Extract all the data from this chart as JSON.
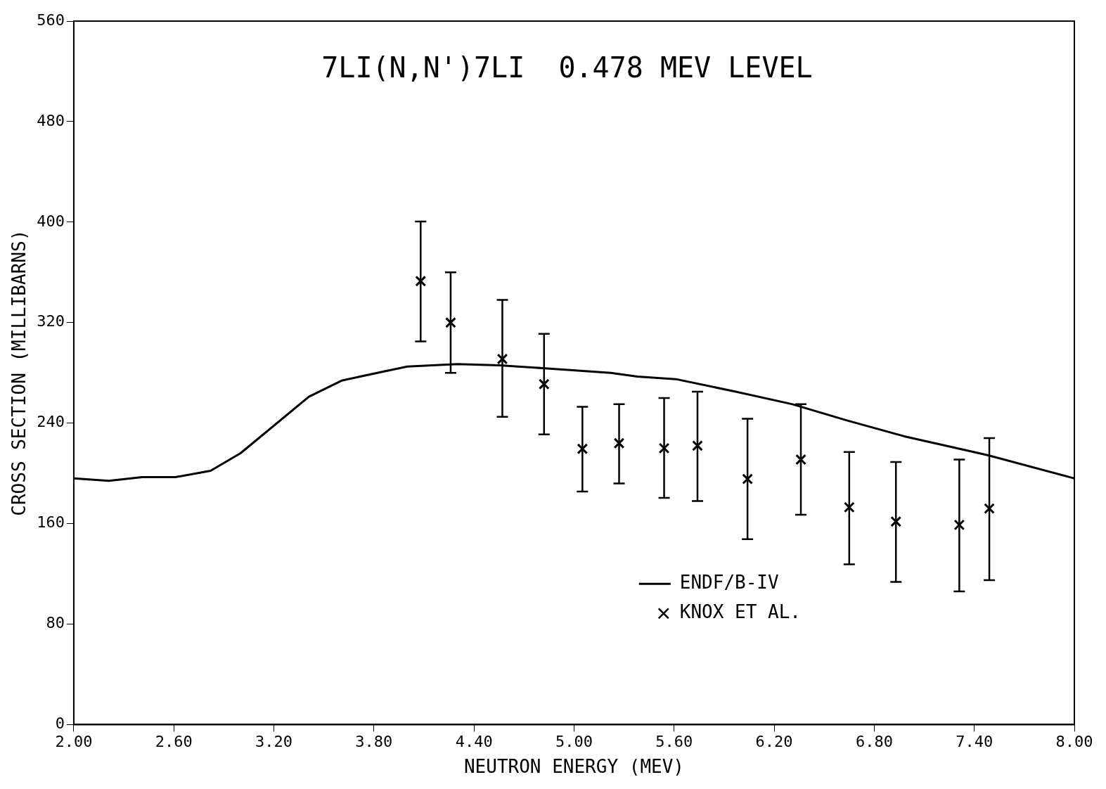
{
  "chart_data": {
    "type": "line",
    "title": "7LI(N,N')7LI  0.478 MEV LEVEL",
    "xlabel": "NEUTRON ENERGY (MEV)",
    "ylabel": "CROSS SECTION (MILLIBARNS)",
    "xlim": [
      2,
      8
    ],
    "xticks": [
      {
        "value": 2,
        "label": "2.00"
      },
      {
        "value": 2.6,
        "label": "2.60"
      },
      {
        "value": 3.2,
        "label": "3.20"
      },
      {
        "value": 3.8,
        "label": "3.80"
      },
      {
        "value": 4.4,
        "label": "4.40"
      },
      {
        "value": 5,
        "label": "5.00"
      },
      {
        "value": 5.6,
        "label": "5.60"
      },
      {
        "value": 6.2,
        "label": "6.20"
      },
      {
        "value": 6.8,
        "label": "6.80"
      },
      {
        "value": 7.4,
        "label": "7.40"
      },
      {
        "value": 8,
        "label": "8.00"
      }
    ],
    "ylim": [
      0,
      560
    ],
    "yticks": [
      0,
      80,
      160,
      240,
      320,
      400,
      480,
      560
    ],
    "grid": false,
    "legend": "bottom",
    "series": [
      {
        "name": "ENDF/B-IV",
        "color": "#000000",
        "marker": "none",
        "line_style": "solid",
        "x": [
          2.0,
          2.21,
          2.41,
          2.61,
          2.82,
          3.0,
          3.41,
          3.61,
          3.82,
          4.0,
          4.3,
          4.55,
          4.84,
          5.22,
          5.38,
          5.61,
          5.97,
          6.31,
          6.64,
          6.98,
          7.48,
          8.0
        ],
        "values": [
          196,
          194,
          197,
          197,
          202,
          216,
          261,
          274,
          280,
          285,
          287,
          286,
          283.5,
          280,
          277,
          275,
          265,
          255,
          242,
          229.5,
          214.5,
          196
        ]
      },
      {
        "name": "KNOX ET AL.",
        "type": "scatter",
        "color": "#000000",
        "marker": "cross",
        "x": [
          4.08,
          4.26,
          4.57,
          4.82,
          5.05,
          5.27,
          5.54,
          5.74,
          6.04,
          6.36,
          6.65,
          6.93,
          7.31,
          7.49
        ],
        "values": [
          353,
          320,
          291,
          271,
          219.5,
          224,
          220,
          222,
          195.5,
          211,
          173,
          161.6,
          159,
          172
        ],
        "errors": [
          [
            305,
            400.5
          ],
          [
            280,
            360
          ],
          [
            245,
            338
          ],
          [
            231,
            311
          ],
          [
            185.5,
            253
          ],
          [
            192,
            255
          ],
          [
            180.5,
            260
          ],
          [
            178,
            265
          ],
          [
            147.6,
            243.5
          ],
          [
            167,
            255
          ],
          [
            127.6,
            217
          ],
          [
            113.6,
            209
          ],
          [
            106,
            211
          ],
          [
            115,
            228
          ]
        ]
      }
    ]
  }
}
